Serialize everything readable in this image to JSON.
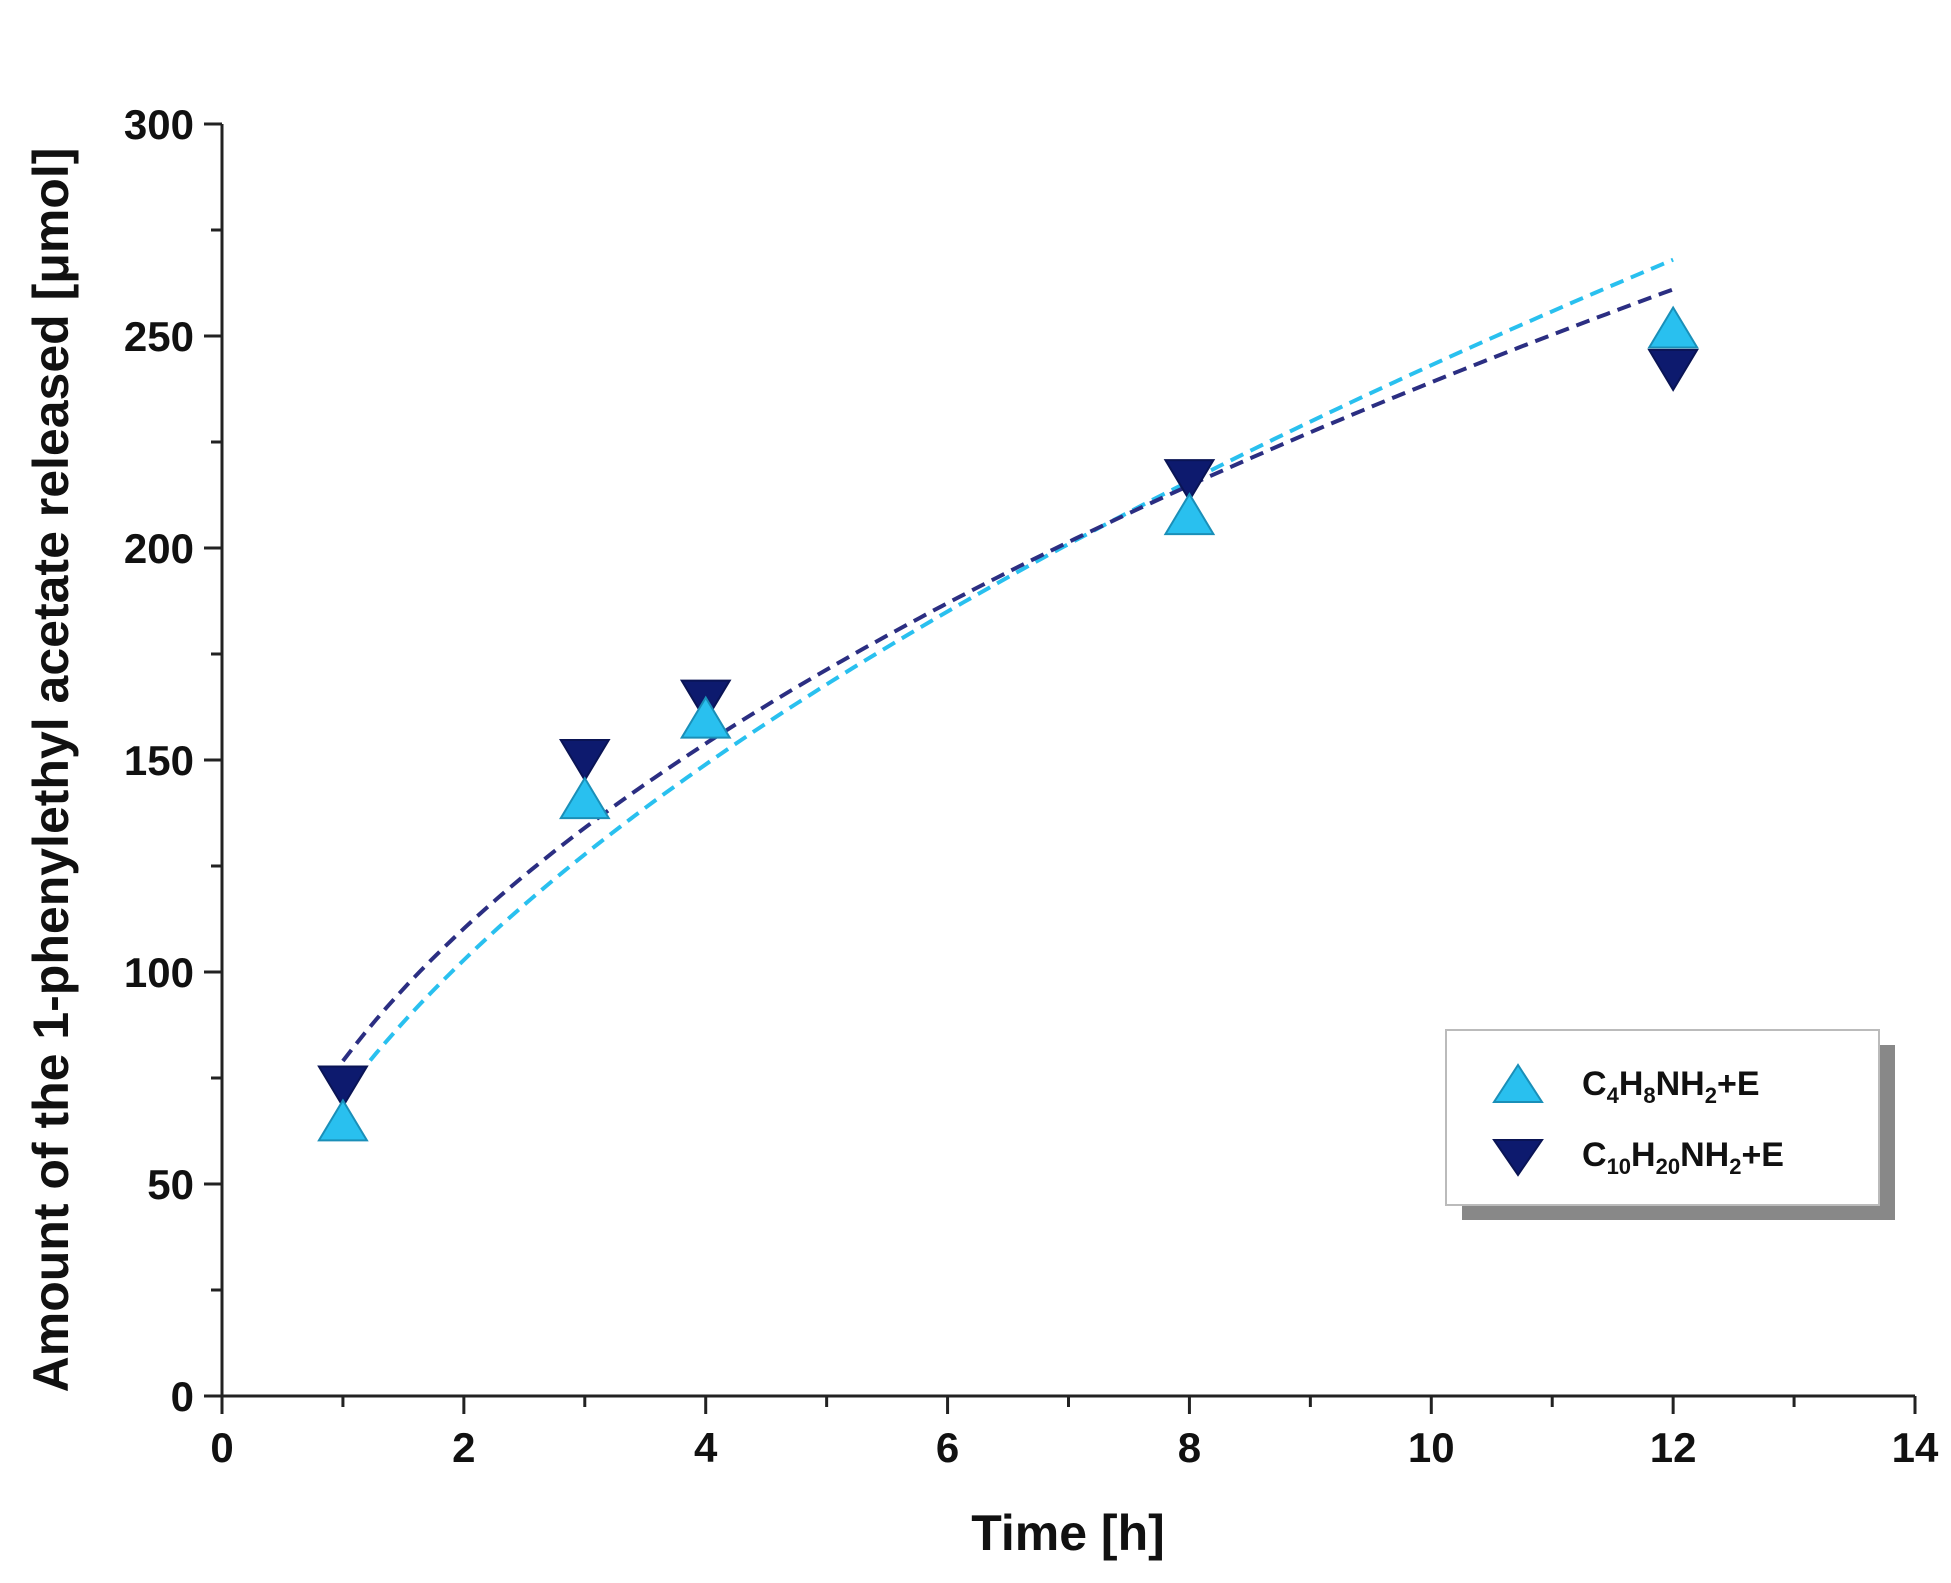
{
  "chart_data": {
    "type": "scatter",
    "title": "",
    "xlabel": "Time [h]",
    "ylabel": "Amount of the 1-phenylethyl acetate released [μmol]",
    "xlim": [
      0,
      14
    ],
    "ylim": [
      0,
      300
    ],
    "xticks": [
      "0",
      "2",
      "4",
      "6",
      "8",
      "10",
      "12",
      "14"
    ],
    "yticks": [
      "0",
      "50",
      "100",
      "150",
      "200",
      "250",
      "300"
    ],
    "legend_position": "right",
    "series": [
      {
        "name": "C4H8NH2+E",
        "label_parts": {
          "p1": "C",
          "s1": "4",
          "p2": "H",
          "s2": "8",
          "p3": "NH",
          "s3": "2",
          "p4": "+E"
        },
        "marker": "triangle-up",
        "color": "#29c0ef",
        "edge_color": "#1a8fb8",
        "x": [
          1,
          3,
          4,
          8,
          12
        ],
        "y": [
          65,
          141,
          160,
          208,
          252
        ],
        "fit": {
          "style": "dashed",
          "color": "#29c0ef",
          "x_range": [
            1,
            12
          ],
          "y_at": [
            {
              "x": 1,
              "y": 71
            },
            {
              "x": 12,
              "y": 268
            }
          ]
        }
      },
      {
        "name": "C10H20NH2+E",
        "label_parts": {
          "p1": "C",
          "s1": "10",
          "p2": "H",
          "s2": "20",
          "p3": "NH",
          "s3": "2",
          "p4": "+E"
        },
        "marker": "triangle-down",
        "color": "#0d1a6e",
        "edge_color": "#0a1455",
        "x": [
          1,
          3,
          4,
          8,
          12
        ],
        "y": [
          73,
          150,
          164,
          216,
          242
        ],
        "fit": {
          "style": "dashed",
          "color": "#2b2e82",
          "x_range": [
            1,
            12
          ],
          "y_at": [
            {
              "x": 1,
              "y": 79
            },
            {
              "x": 12,
              "y": 261
            }
          ]
        }
      }
    ]
  }
}
